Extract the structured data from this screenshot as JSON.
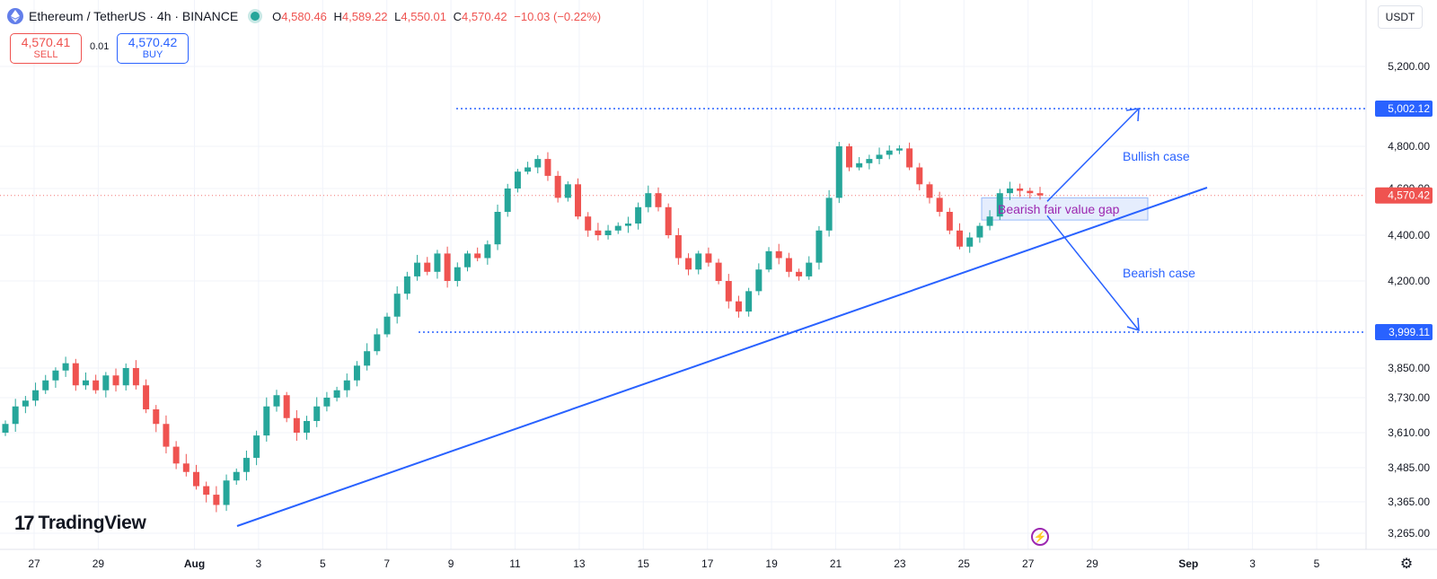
{
  "header": {
    "symbol_title": "Ethereum / TetherUS · 4h · BINANCE",
    "ohlc": {
      "o_label": "O",
      "o_value": "4,580.46",
      "h_label": "H",
      "h_value": "4,589.22",
      "l_label": "L",
      "l_value": "4,550.01",
      "c_label": "C",
      "c_value": "4,570.42",
      "change": "−10.03 (−0.22%)"
    },
    "sell_price": "4,570.41",
    "sell_label": "SELL",
    "spread": "0.01",
    "buy_price": "4,570.42",
    "buy_label": "BUY",
    "currency": "USDT"
  },
  "branding": {
    "logo_mark": "17",
    "logo_text": "TradingView"
  },
  "colors": {
    "up": "#26a69a",
    "down": "#ef5350",
    "accent": "#2962ff",
    "fvg_text": "#9c27b0",
    "fvg_fill": "#e3ecfd"
  },
  "icons": {
    "coin": "ethereum-icon",
    "settings": "gear-icon",
    "alert": "lightning-icon"
  },
  "chart_data": {
    "type": "candlestick",
    "interval": "4h",
    "price_axis_labels": [
      "5,200.00",
      "4,800.00",
      "4,600.00",
      "4,400.00",
      "4,200.00",
      "3,850.00",
      "3,730.00",
      "3,610.00",
      "3,485.00",
      "3,365.00",
      "3,265.00"
    ],
    "price_axis_values": [
      5200,
      4800,
      4600,
      4400,
      4200,
      3850,
      3730,
      3610,
      3485,
      3365,
      3265
    ],
    "time_axis_labels": [
      "27",
      "29",
      "Aug",
      "3",
      "5",
      "7",
      "9",
      "11",
      "13",
      "15",
      "17",
      "19",
      "21",
      "23",
      "25",
      "27",
      "29",
      "Sep",
      "3",
      "5"
    ],
    "current_price_label": "4,570.42",
    "current_price": 4570.42,
    "horizontal_levels": [
      {
        "label": "5,002.12",
        "value": 5002.12
      },
      {
        "label": "3,999.11",
        "value": 3999.11
      }
    ],
    "annotations": {
      "bullish": "Bullish case",
      "bearish": "Bearish case",
      "fvg": "Bearish fair value gap"
    },
    "fair_value_gap": {
      "top": 4560,
      "bottom": 4465
    },
    "trendline": {
      "from": {
        "date": "Aug 3",
        "price": 3335
      },
      "to": {
        "date": "Aug 29",
        "price": 4610
      }
    },
    "scenario_arrows": [
      {
        "name": "bullish",
        "to": 5002.12
      },
      {
        "name": "bearish",
        "to": 3999.11
      }
    ],
    "ohlc_path": [
      3640,
      3700,
      3720,
      3760,
      3800,
      3840,
      3870,
      3780,
      3800,
      3760,
      3820,
      3780,
      3850,
      3780,
      3690,
      3640,
      3560,
      3500,
      3470,
      3420,
      3390,
      3355,
      3440,
      3470,
      3520,
      3600,
      3700,
      3740,
      3660,
      3610,
      3650,
      3700,
      3730,
      3760,
      3800,
      3860,
      3920,
      3990,
      4060,
      4150,
      4220,
      4280,
      4240,
      4320,
      4200,
      4260,
      4320,
      4300,
      4360,
      4500,
      4600,
      4680,
      4700,
      4740,
      4660,
      4560,
      4620,
      4480,
      4420,
      4400,
      4420,
      4440,
      4450,
      4520,
      4580,
      4520,
      4400,
      4300,
      4250,
      4320,
      4280,
      4200,
      4120,
      4080,
      4160,
      4250,
      4330,
      4300,
      4240,
      4220,
      4280,
      4420,
      4560,
      4800,
      4700,
      4720,
      4740,
      4760,
      4780,
      4790,
      4700,
      4620,
      4560,
      4500,
      4420,
      4350,
      4390,
      4440,
      4480,
      4580,
      4600,
      4590,
      4580,
      4570.42
    ]
  }
}
